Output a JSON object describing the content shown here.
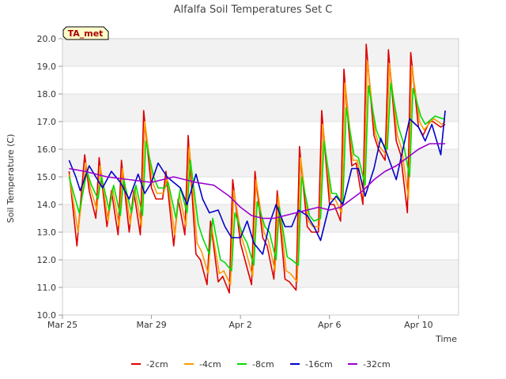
{
  "chart_data": {
    "type": "line",
    "title": "Alfalfa Soil Temperatures Set C",
    "xlabel": "Time",
    "ylabel": "Soil Temperature (C)",
    "badge": "TA_met",
    "xlim": [
      0,
      17.8
    ],
    "ylim": [
      10.0,
      20.0
    ],
    "y_ticks": [
      10.0,
      11.0,
      12.0,
      13.0,
      14.0,
      15.0,
      16.0,
      17.0,
      18.0,
      19.0,
      20.0
    ],
    "y_tick_labels": [
      "10.0",
      "11.0",
      "12.0",
      "13.0",
      "14.0",
      "15.0",
      "16.0",
      "17.0",
      "18.0",
      "19.0",
      "20.0"
    ],
    "x_ticks": [
      0,
      4,
      8,
      12,
      16
    ],
    "x_tick_labels": [
      "Mar 25",
      "Mar 29",
      "Apr 2",
      "Apr 6",
      "Apr 10"
    ],
    "grid": "horizontal-bands",
    "legend_position": "bottom",
    "x_unit": "days since Mar 25",
    "series": [
      {
        "name": "-2cm",
        "color": "#dd0000",
        "x": [
          0.3,
          0.65,
          1.0,
          1.2,
          1.5,
          1.65,
          2.0,
          2.2,
          2.5,
          2.65,
          3.0,
          3.2,
          3.5,
          3.65,
          4.0,
          4.2,
          4.5,
          4.65,
          5.0,
          5.2,
          5.5,
          5.65,
          6.0,
          6.2,
          6.5,
          6.65,
          7.0,
          7.2,
          7.5,
          7.65,
          8.0,
          8.2,
          8.5,
          8.65,
          9.0,
          9.2,
          9.5,
          9.65,
          10.0,
          10.2,
          10.5,
          10.65,
          11.0,
          11.2,
          11.5,
          11.65,
          12.0,
          12.2,
          12.5,
          12.65,
          13.0,
          13.2,
          13.5,
          13.65,
          14.0,
          14.2,
          14.5,
          14.65,
          15.0,
          15.2,
          15.5,
          15.65,
          16.0,
          16.2,
          16.5,
          16.65,
          17.0,
          17.2
        ],
        "y": [
          15.2,
          12.5,
          15.8,
          14.5,
          13.5,
          15.7,
          13.2,
          14.5,
          12.9,
          15.6,
          13.0,
          14.5,
          12.9,
          17.4,
          14.6,
          14.2,
          14.2,
          15.2,
          12.5,
          14.2,
          12.9,
          16.5,
          12.2,
          12.0,
          11.1,
          13.4,
          11.2,
          11.4,
          10.8,
          14.9,
          12.6,
          12.0,
          11.1,
          15.2,
          12.8,
          12.5,
          11.3,
          14.5,
          11.3,
          11.2,
          10.9,
          16.1,
          13.2,
          13.0,
          13.0,
          17.4,
          14.0,
          14.0,
          13.4,
          18.9,
          15.4,
          15.5,
          14.0,
          19.8,
          16.5,
          16.0,
          15.6,
          19.6,
          16.3,
          15.8,
          13.7,
          19.5,
          16.8,
          16.5,
          17.0,
          17.0,
          16.8,
          16.9
        ]
      },
      {
        "name": "-4cm",
        "color": "#ff9900",
        "x": [
          0.3,
          0.7,
          1.05,
          1.25,
          1.55,
          1.7,
          2.05,
          2.25,
          2.55,
          2.7,
          3.05,
          3.25,
          3.55,
          3.7,
          4.05,
          4.25,
          4.55,
          4.7,
          5.05,
          5.25,
          5.55,
          5.7,
          6.05,
          6.25,
          6.55,
          6.7,
          7.05,
          7.25,
          7.55,
          7.7,
          8.05,
          8.25,
          8.55,
          8.7,
          9.05,
          9.25,
          9.55,
          9.7,
          10.05,
          10.25,
          10.55,
          10.7,
          11.05,
          11.25,
          11.55,
          11.7,
          12.05,
          12.25,
          12.55,
          12.7,
          13.05,
          13.25,
          13.55,
          13.7,
          14.05,
          14.25,
          14.55,
          14.7,
          15.05,
          15.25,
          15.55,
          15.7,
          16.05,
          16.25,
          16.55,
          16.7,
          17.05,
          17.2
        ],
        "y": [
          15.1,
          13.0,
          15.5,
          14.6,
          13.8,
          15.4,
          13.4,
          14.6,
          13.2,
          15.3,
          13.3,
          14.6,
          13.2,
          17.0,
          14.8,
          14.4,
          14.4,
          15.0,
          12.9,
          14.4,
          13.2,
          16.1,
          12.6,
          12.3,
          11.5,
          13.2,
          11.5,
          11.6,
          11.1,
          14.5,
          12.8,
          12.3,
          11.4,
          14.9,
          13.0,
          12.7,
          11.6,
          14.3,
          11.6,
          11.5,
          11.2,
          15.7,
          13.4,
          13.2,
          13.2,
          16.9,
          14.2,
          14.2,
          13.7,
          18.4,
          15.6,
          15.6,
          14.3,
          19.2,
          16.6,
          16.1,
          15.8,
          19.1,
          16.5,
          16.0,
          14.2,
          19.0,
          17.0,
          16.7,
          17.0,
          17.1,
          16.9,
          17.0
        ]
      },
      {
        "name": "-8cm",
        "color": "#00dd00",
        "x": [
          0.3,
          0.75,
          1.1,
          1.3,
          1.6,
          1.75,
          2.1,
          2.3,
          2.6,
          2.75,
          3.1,
          3.3,
          3.6,
          3.75,
          4.1,
          4.3,
          4.6,
          4.75,
          5.1,
          5.3,
          5.6,
          5.75,
          6.1,
          6.3,
          6.6,
          6.75,
          7.1,
          7.3,
          7.6,
          7.75,
          8.1,
          8.3,
          8.6,
          8.75,
          9.1,
          9.3,
          9.6,
          9.75,
          10.1,
          10.3,
          10.6,
          10.75,
          11.1,
          11.3,
          11.6,
          11.75,
          12.1,
          12.3,
          12.6,
          12.75,
          13.1,
          13.3,
          13.6,
          13.75,
          14.1,
          14.3,
          14.6,
          14.75,
          15.1,
          15.3,
          15.6,
          15.75,
          16.1,
          16.3,
          16.6,
          16.75,
          17.1,
          17.2
        ],
        "y": [
          15.0,
          13.7,
          15.2,
          14.7,
          14.2,
          15.0,
          13.8,
          14.7,
          13.6,
          14.9,
          13.7,
          14.7,
          13.6,
          16.3,
          15.0,
          14.6,
          14.6,
          14.8,
          13.5,
          14.6,
          13.7,
          15.6,
          13.3,
          12.8,
          12.2,
          13.5,
          12.0,
          11.9,
          11.6,
          13.7,
          12.9,
          12.6,
          11.8,
          14.1,
          13.2,
          13.0,
          12.0,
          13.9,
          12.1,
          12.0,
          11.8,
          15.0,
          13.6,
          13.4,
          13.5,
          16.3,
          14.4,
          14.4,
          14.0,
          17.5,
          15.8,
          15.7,
          14.7,
          18.3,
          16.7,
          16.3,
          16.0,
          18.4,
          16.8,
          16.3,
          15.0,
          18.2,
          17.2,
          16.9,
          17.1,
          17.2,
          17.1,
          17.1
        ]
      },
      {
        "name": "-16cm",
        "color": "#0000cc",
        "x": [
          0.3,
          0.6,
          0.8,
          1.2,
          1.5,
          1.8,
          2.2,
          2.6,
          3.0,
          3.4,
          3.7,
          4.0,
          4.3,
          4.7,
          5.0,
          5.3,
          5.6,
          6.0,
          6.3,
          6.6,
          7.0,
          7.3,
          7.6,
          8.0,
          8.3,
          8.6,
          9.0,
          9.3,
          9.6,
          10.0,
          10.3,
          10.6,
          11.0,
          11.3,
          11.6,
          12.0,
          12.3,
          12.6,
          13.0,
          13.3,
          13.6,
          14.0,
          14.3,
          14.6,
          15.0,
          15.3,
          15.6,
          16.0,
          16.3,
          16.6,
          17.0,
          17.2
        ],
        "y": [
          15.6,
          15.0,
          14.5,
          15.4,
          15.0,
          14.6,
          15.2,
          14.8,
          14.2,
          15.1,
          14.4,
          14.8,
          15.5,
          15.0,
          14.8,
          14.6,
          14.0,
          15.1,
          14.2,
          13.7,
          13.8,
          13.2,
          12.8,
          12.8,
          13.4,
          12.6,
          12.2,
          13.3,
          14.0,
          13.2,
          13.2,
          13.8,
          13.6,
          13.2,
          12.7,
          14.0,
          14.3,
          14.0,
          15.3,
          15.3,
          14.3,
          15.3,
          16.4,
          15.8,
          14.9,
          16.0,
          17.1,
          16.8,
          16.3,
          16.9,
          15.8,
          17.4
        ]
      },
      {
        "name": "-32cm",
        "color": "#9900cc",
        "x": [
          0.3,
          1.0,
          2.0,
          3.0,
          4.0,
          5.0,
          6.0,
          6.8,
          7.5,
          8.0,
          8.5,
          9.0,
          9.5,
          10.0,
          10.5,
          11.0,
          11.5,
          12.0,
          12.5,
          13.0,
          13.5,
          14.0,
          14.5,
          15.0,
          15.5,
          16.0,
          16.5,
          17.2
        ],
        "y": [
          15.3,
          15.2,
          15.0,
          14.9,
          14.8,
          15.0,
          14.8,
          14.7,
          14.3,
          13.9,
          13.6,
          13.5,
          13.5,
          13.6,
          13.7,
          13.8,
          13.9,
          13.8,
          13.9,
          14.2,
          14.5,
          14.9,
          15.2,
          15.4,
          15.7,
          16.0,
          16.2,
          16.2
        ]
      }
    ]
  }
}
